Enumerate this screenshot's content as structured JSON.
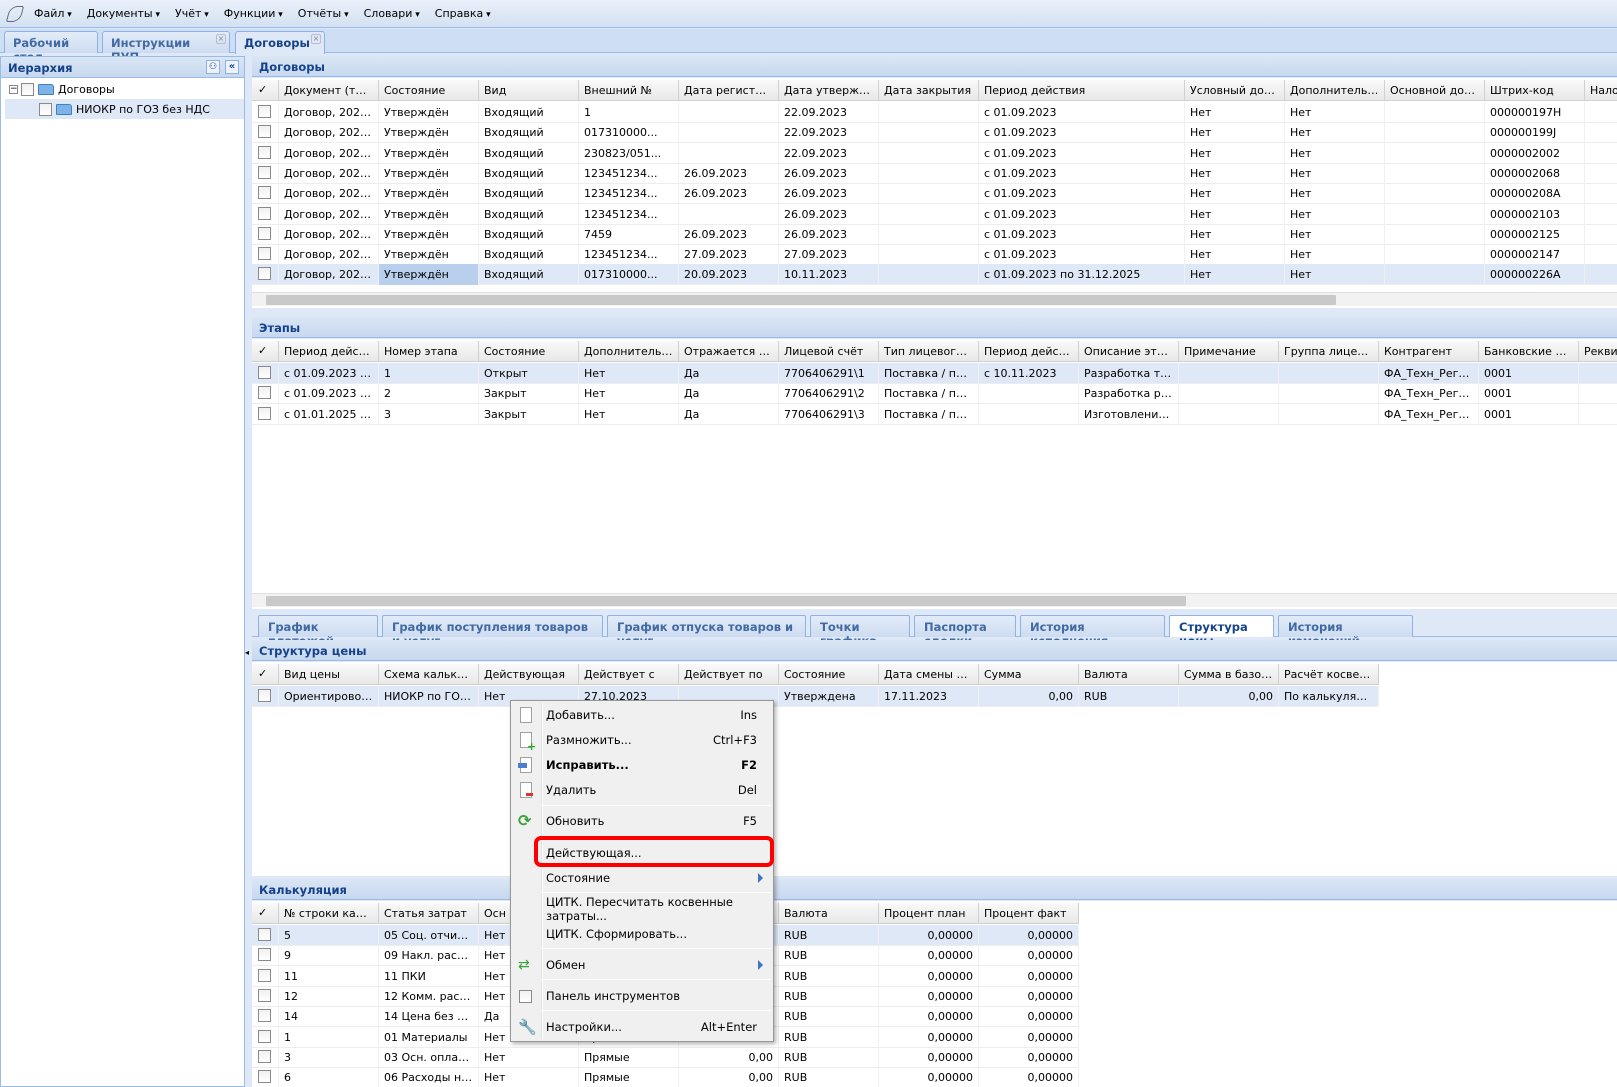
{
  "menubar": {
    "items": [
      "Файл",
      "Документы",
      "Учёт",
      "Функции",
      "Отчёты",
      "Словари",
      "Справка"
    ]
  },
  "tabs": [
    {
      "label": "Рабочий стол",
      "closable": false
    },
    {
      "label": "Инструкции ПУП",
      "closable": true
    },
    {
      "label": "Договоры",
      "closable": true,
      "active": true
    }
  ],
  "hierarchy": {
    "title": "Иерархия",
    "tree": [
      {
        "label": "Договоры",
        "level": 0
      },
      {
        "label": "НИОКР по ГОЗ без НДС",
        "level": 1,
        "selected": true
      }
    ]
  },
  "contracts": {
    "title": "Договоры",
    "columns": [
      "Документ (тип, №",
      "Состояние",
      "Вид",
      "Внешний №",
      "Дата регистрации.",
      "Дата утверждения",
      "Дата закрытия",
      "Период действия",
      "Условный договор",
      "Дополнительное с",
      "Основной договор",
      "Штрих-код",
      "Налоговые"
    ],
    "rows": [
      [
        "Договор, 2023/...",
        "Утверждён",
        "Входящий",
        "1",
        "",
        "22.09.2023",
        "",
        "с 01.09.2023",
        "Нет",
        "Нет",
        "",
        "000000197H",
        ""
      ],
      [
        "Договор, 2023/...",
        "Утверждён",
        "Входящий",
        "017310000...",
        "",
        "22.09.2023",
        "",
        "с 01.09.2023",
        "Нет",
        "Нет",
        "",
        "000000199J",
        ""
      ],
      [
        "Договор, 2023/...",
        "Утверждён",
        "Входящий",
        "230823/051...",
        "",
        "22.09.2023",
        "",
        "с 01.09.2023",
        "Нет",
        "Нет",
        "",
        "0000002002",
        ""
      ],
      [
        "Договор, 2023/...",
        "Утверждён",
        "Входящий",
        "123451234...",
        "26.09.2023",
        "26.09.2023",
        "",
        "с 01.09.2023",
        "Нет",
        "Нет",
        "",
        "0000002068",
        ""
      ],
      [
        "Договор, 2023/...",
        "Утверждён",
        "Входящий",
        "123451234...",
        "26.09.2023",
        "26.09.2023",
        "",
        "с 01.09.2023",
        "Нет",
        "Нет",
        "",
        "000000208A",
        ""
      ],
      [
        "Договор, 2023/...",
        "Утверждён",
        "Входящий",
        "123451234...",
        "",
        "26.09.2023",
        "",
        "с 01.09.2023",
        "Нет",
        "Нет",
        "",
        "0000002103",
        ""
      ],
      [
        "Договор, 2023/...",
        "Утверждён",
        "Входящий",
        "7459",
        "26.09.2023",
        "26.09.2023",
        "",
        "с 01.09.2023",
        "Нет",
        "Нет",
        "",
        "0000002125",
        ""
      ],
      [
        "Договор, 2023/...",
        "Утверждён",
        "Входящий",
        "123451234...",
        "27.09.2023",
        "27.09.2023",
        "",
        "с 01.09.2023",
        "Нет",
        "Нет",
        "",
        "0000002147",
        ""
      ],
      [
        "Договор, 2023/...",
        "Утверждён",
        "Входящий",
        "017310000...",
        "20.09.2023",
        "10.11.2023",
        "",
        "с 01.09.2023 по 31.12.2025",
        "Нет",
        "Нет",
        "",
        "000000226A",
        ""
      ]
    ],
    "selected_row": 8
  },
  "stages": {
    "title": "Этапы",
    "columns": [
      "Период действия..",
      "Номер этапа",
      "Состояние",
      "Дополнительное с",
      "Отражается на сум",
      "Лицевой счёт",
      "Тип лицевого счёт",
      "Период действия л",
      "Описание этапа",
      "Примечание",
      "Группа лицевых сч",
      "Контрагент",
      "Банковские реквиз",
      "Реквизиты"
    ],
    "rows": [
      [
        "с 01.09.2023 п...",
        "1",
        "Открыт",
        "Нет",
        "Да",
        "7706406291\\1",
        "Поставка / про...",
        "с 10.11.2023",
        "Разработка тех...",
        "",
        "",
        "ФА_Техн_Рег_...",
        "0001",
        ""
      ],
      [
        "с 01.09.2023 п...",
        "2",
        "Закрыт",
        "Нет",
        "Да",
        "7706406291\\2",
        "Поставка / про...",
        "",
        "Разработка ра...",
        "",
        "",
        "ФА_Техн_Рег_...",
        "0001",
        ""
      ],
      [
        "с 01.01.2025 п...",
        "3",
        "Закрыт",
        "Нет",
        "Да",
        "7706406291\\3",
        "Поставка / про...",
        "",
        "Изготовление ...",
        "",
        "",
        "ФА_Техн_Рег_...",
        "0001",
        ""
      ]
    ],
    "selected_row": 0
  },
  "detail_tabs": [
    {
      "label": "График платежей"
    },
    {
      "label": "График поступления товаров и услуг"
    },
    {
      "label": "График отпуска товаров и услуг"
    },
    {
      "label": "Точки графика"
    },
    {
      "label": "Паспорта сделки"
    },
    {
      "label": "История исполнения"
    },
    {
      "label": "Структура цены",
      "active": true
    },
    {
      "label": "История изменений"
    }
  ],
  "price_structure": {
    "title": "Структура цены",
    "columns": [
      "Вид цены",
      "Схема калькуляци",
      "Действующая",
      "Действует с",
      "Действует по",
      "Состояние",
      "Дата смены состоя",
      "Сумма",
      "Валюта",
      "Сумма в базовой в",
      "Расчёт косвенных"
    ],
    "rows": [
      [
        "Ориентировоч...",
        "НИОКР по ГОЗ ...",
        "Нет",
        "27.10.2023",
        "",
        "Утверждена",
        "17.11.2023",
        "0,00",
        "RUB",
        "0,00",
        "По калькуляции"
      ]
    ],
    "selected_row": 0
  },
  "calculation": {
    "title": "Калькуляция",
    "columns": [
      "№ строки калькул",
      "Статья затрат",
      "Осн",
      "",
      "",
      "Валюта",
      "Процент план",
      "Процент факт"
    ],
    "rows": [
      [
        "5",
        "05 Соц. отчисл...",
        "Нет",
        "",
        "",
        "RUB",
        "0,00000",
        "0,00000"
      ],
      [
        "9",
        "09 Накл. расхо...",
        "Нет",
        "",
        "",
        "RUB",
        "0,00000",
        "0,00000"
      ],
      [
        "11",
        "11 ПКИ",
        "Нет",
        "",
        "",
        "RUB",
        "0,00000",
        "0,00000"
      ],
      [
        "12",
        "12 Комм. расхо...",
        "Нет",
        "",
        "",
        "RUB",
        "0,00000",
        "0,00000"
      ],
      [
        "14",
        "14 Цена без НДС",
        "Да",
        "",
        "",
        "RUB",
        "0,00000",
        "0,00000"
      ],
      [
        "1",
        "01 Материалы",
        "Нет",
        "Прямые",
        "0,00",
        "RUB",
        "0,00000",
        "0,00000"
      ],
      [
        "3",
        "03 Осн. оплата...",
        "Нет",
        "Прямые",
        "0,00",
        "RUB",
        "0,00000",
        "0,00000"
      ],
      [
        "6",
        "06 Расходы на...",
        "Нет",
        "Прямые",
        "0,00",
        "RUB",
        "0,00000",
        "0,00000"
      ]
    ],
    "selected_row": 0
  },
  "context_menu": {
    "items": [
      {
        "label": "Добавить...",
        "shortcut": "Ins",
        "icon": "document-icon"
      },
      {
        "label": "Размножить...",
        "shortcut": "Ctrl+F3",
        "icon": "document-add-icon"
      },
      {
        "label": "Исправить...",
        "shortcut": "F2",
        "icon": "edit-icon",
        "bold": true
      },
      {
        "label": "Удалить",
        "shortcut": "Del",
        "icon": "document-delete-icon"
      },
      {
        "label": "Обновить",
        "shortcut": "F5",
        "icon": "refresh-icon"
      },
      {
        "label": "Действующая...",
        "shortcut": "",
        "highlighted": true
      },
      {
        "label": "Состояние",
        "shortcut": "",
        "submenu": true
      },
      {
        "label": "ЦИТК. Пересчитать косвенные затраты...",
        "shortcut": ""
      },
      {
        "label": "ЦИТК. Сформировать...",
        "shortcut": ""
      },
      {
        "label": "Обмен",
        "shortcut": "",
        "submenu": true,
        "icon": "exchange-icon"
      },
      {
        "label": "Панель инструментов",
        "shortcut": "",
        "checkbox": true
      },
      {
        "label": "Настройки...",
        "shortcut": "Alt+Enter",
        "icon": "wrench-icon"
      }
    ],
    "highlight_color": "#ff0000"
  },
  "colors": {
    "header_text": "#15428b",
    "selection": "#dfe8f6",
    "border": "#99bbe8"
  }
}
